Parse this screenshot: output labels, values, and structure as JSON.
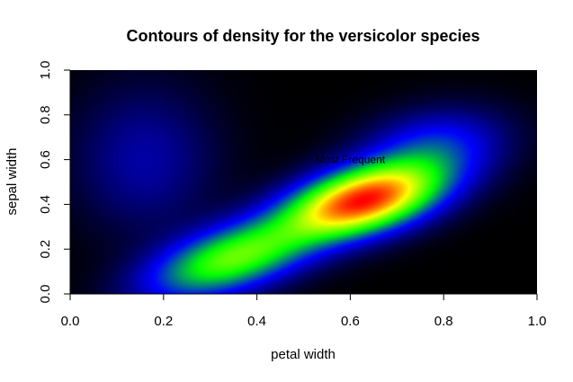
{
  "chart_data": {
    "type": "heatmap",
    "title": "Contours of density for the versicolor species",
    "xlabel": "petal width",
    "ylabel": "sepal width",
    "xlim": [
      0,
      1
    ],
    "ylim": [
      0,
      1
    ],
    "xticks": [
      0.0,
      0.2,
      0.4,
      0.6,
      0.8,
      1.0
    ],
    "xtick_labels": [
      "0.0",
      "0.2",
      "0.4",
      "0.6",
      "0.8",
      "1.0"
    ],
    "yticks": [
      0.0,
      0.2,
      0.4,
      0.6,
      0.8,
      1.0
    ],
    "ytick_labels": [
      "0.0",
      "0.2",
      "0.4",
      "0.6",
      "0.8",
      "1.0"
    ],
    "colormap": [
      "#000000",
      "#0000ff",
      "#00ff00",
      "#ffff00",
      "#ff0000"
    ],
    "density_modes": [
      {
        "x": 0.63,
        "y": 0.42,
        "sx": 0.11,
        "sy": 0.11,
        "rho": 0.45,
        "weight": 1.0
      },
      {
        "x": 0.35,
        "y": 0.16,
        "sx": 0.12,
        "sy": 0.12,
        "rho": 0.55,
        "weight": 0.55
      },
      {
        "x": 0.78,
        "y": 0.66,
        "sx": 0.1,
        "sy": 0.11,
        "rho": 0.2,
        "weight": 0.22
      },
      {
        "x": 0.16,
        "y": 0.6,
        "sx": 0.1,
        "sy": 0.22,
        "rho": 0.0,
        "weight": 0.12
      }
    ],
    "annotations": [
      {
        "text": "Most Frequent",
        "x": 0.6,
        "y": 0.6
      }
    ]
  }
}
